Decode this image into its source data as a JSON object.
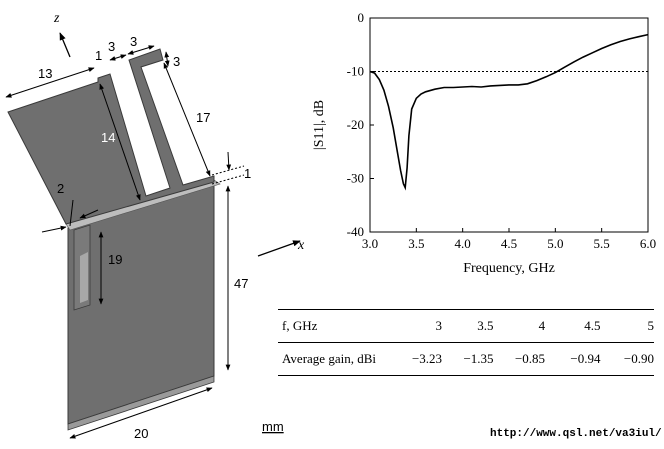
{
  "antenna": {
    "axis_z": "z",
    "axis_x": "x",
    "dims": {
      "d13": "13",
      "d1": "1",
      "d3a": "3",
      "d3b": "3",
      "d3c": "3",
      "d14": "14",
      "d17": "17",
      "d1b": "1",
      "d2": "2",
      "d19": "19",
      "d47": "47",
      "d20": "20"
    },
    "unit": "mm"
  },
  "chart_data": {
    "type": "line",
    "xlabel": "Frequency, GHz",
    "ylabel": "|S11|, dB",
    "xlim": [
      3.0,
      6.0
    ],
    "ylim": [
      -40,
      0
    ],
    "xticks": [
      "3.0",
      "3.5",
      "4.0",
      "4.5",
      "5.0",
      "5.5",
      "6.0"
    ],
    "yticks": [
      "0",
      "-10",
      "-20",
      "-30",
      "-40"
    ],
    "reference_line": -10,
    "series": [
      {
        "x": [
          3.0,
          3.05,
          3.1,
          3.15,
          3.2,
          3.25,
          3.3,
          3.33,
          3.36,
          3.38,
          3.4,
          3.42,
          3.45,
          3.5,
          3.55,
          3.6,
          3.7,
          3.8,
          3.9,
          4.0,
          4.1,
          4.2,
          4.3,
          4.4,
          4.5,
          4.6,
          4.7,
          4.8,
          4.9,
          5.0,
          5.1,
          5.2,
          5.3,
          5.4,
          5.5,
          5.6,
          5.7,
          5.8,
          5.9,
          6.0
        ],
        "y": [
          -10.0,
          -10.3,
          -11.5,
          -13.5,
          -16.5,
          -20.5,
          -25.5,
          -28.5,
          -31.0,
          -31.7,
          -28.0,
          -22.0,
          -17.0,
          -15.0,
          -14.2,
          -13.8,
          -13.3,
          -13.0,
          -13.0,
          -12.9,
          -12.8,
          -12.9,
          -12.7,
          -12.6,
          -12.5,
          -12.5,
          -12.3,
          -11.7,
          -11.0,
          -10.2,
          -9.2,
          -8.2,
          -7.3,
          -6.5,
          -5.7,
          -5.0,
          -4.4,
          -3.9,
          -3.5,
          -3.1
        ]
      }
    ]
  },
  "table": {
    "row1_head": "f, GHz",
    "row2_head": "Average gain, dBi",
    "freqs": [
      "3",
      "3.5",
      "4",
      "4.5",
      "5"
    ],
    "gains": [
      "−3.23",
      "−1.35",
      "−0.85",
      "−0.94",
      "−0.90"
    ]
  },
  "url": "http://www.qsl.net/va3iul/"
}
